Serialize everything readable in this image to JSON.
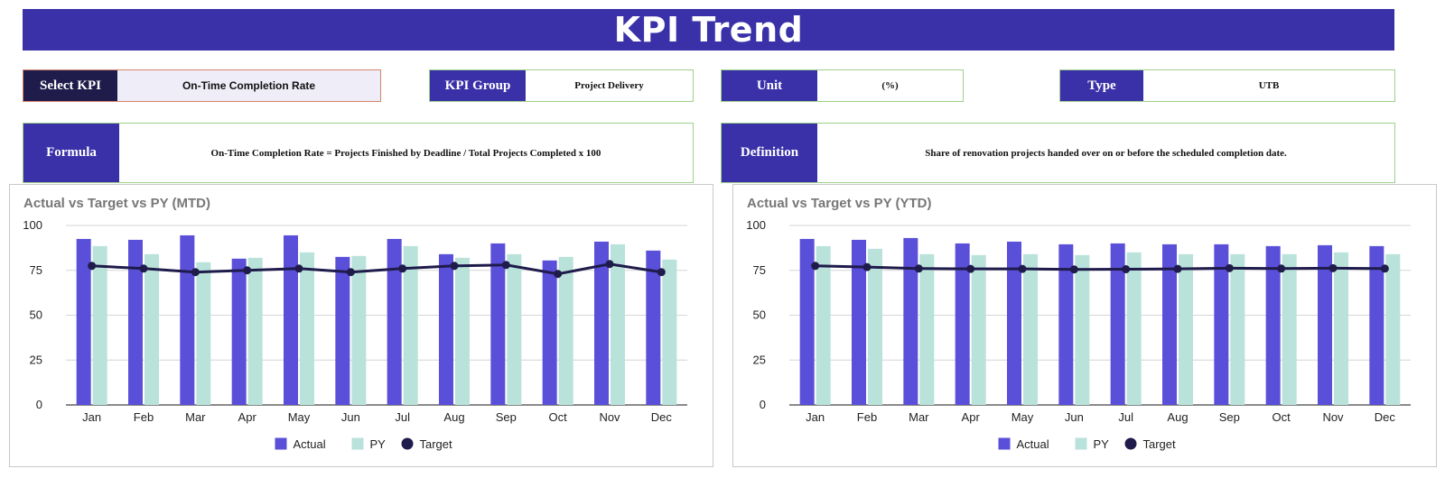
{
  "header": {
    "title": "KPI Trend"
  },
  "fields": {
    "select_kpi": {
      "label": "Select KPI",
      "value": "On-Time Completion Rate"
    },
    "kpi_group": {
      "label": "KPI Group",
      "value": "Project Delivery"
    },
    "unit": {
      "label": "Unit",
      "value": "(%)"
    },
    "type": {
      "label": "Type",
      "value": "UTB"
    },
    "formula": {
      "label": "Formula",
      "value": "On-Time Completion Rate = Projects Finished by Deadline / Total Projects Completed x 100"
    },
    "definition": {
      "label": "Definition",
      "value": "Share of renovation projects handed over on or before the scheduled completion date."
    }
  },
  "colors": {
    "actual": "#5a4fd8",
    "py": "#b8e2da",
    "target": "#1f1b4b",
    "banner": "#3a31a8"
  },
  "chart_data": [
    {
      "type": "bar",
      "title": "Actual vs Target vs PY (MTD)",
      "categories": [
        "Jan",
        "Feb",
        "Mar",
        "Apr",
        "May",
        "Jun",
        "Jul",
        "Aug",
        "Sep",
        "Oct",
        "Nov",
        "Dec"
      ],
      "ylim": [
        0,
        100
      ],
      "yticks": [
        0,
        25,
        50,
        75,
        100
      ],
      "grid": true,
      "legend_position": "bottom",
      "series": [
        {
          "name": "Actual",
          "type": "bar",
          "values": [
            92.5,
            92,
            94.5,
            81.5,
            94.5,
            82.5,
            92.5,
            84,
            90,
            80.5,
            91,
            86
          ]
        },
        {
          "name": "PY",
          "type": "bar",
          "values": [
            88.5,
            84,
            79.5,
            82,
            85,
            83,
            88.5,
            82,
            84,
            82.5,
            89.5,
            81
          ]
        },
        {
          "name": "Target",
          "type": "line",
          "values": [
            77.5,
            76,
            74,
            75,
            76,
            74,
            76,
            77.5,
            78,
            73,
            78.5,
            74
          ]
        }
      ]
    },
    {
      "type": "bar",
      "title": "Actual vs Target vs PY (YTD)",
      "categories": [
        "Jan",
        "Feb",
        "Mar",
        "Apr",
        "May",
        "Jun",
        "Jul",
        "Aug",
        "Sep",
        "Oct",
        "Nov",
        "Dec"
      ],
      "ylim": [
        0,
        100
      ],
      "yticks": [
        0,
        25,
        50,
        75,
        100
      ],
      "grid": true,
      "legend_position": "bottom",
      "series": [
        {
          "name": "Actual",
          "type": "bar",
          "values": [
            92.5,
            92,
            93,
            90,
            91,
            89.5,
            90,
            89.5,
            89.5,
            88.5,
            89,
            88.5
          ]
        },
        {
          "name": "PY",
          "type": "bar",
          "values": [
            88.5,
            87,
            84,
            83.5,
            84,
            83.5,
            85,
            84,
            84,
            84,
            85,
            84
          ]
        },
        {
          "name": "Target",
          "type": "line",
          "values": [
            77.5,
            76.8,
            76,
            75.8,
            75.8,
            75.5,
            75.6,
            75.8,
            76.2,
            76,
            76.2,
            76
          ]
        }
      ]
    }
  ]
}
